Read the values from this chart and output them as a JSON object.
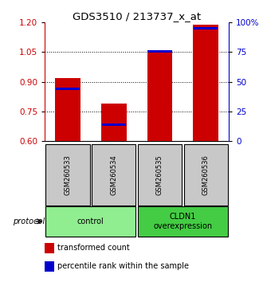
{
  "title": "GDS3510 / 213737_x_at",
  "samples": [
    "GSM260533",
    "GSM260534",
    "GSM260535",
    "GSM260536"
  ],
  "red_values": [
    0.92,
    0.79,
    1.06,
    1.19
  ],
  "blue_values": [
    0.865,
    0.682,
    1.055,
    1.17
  ],
  "ymin": 0.6,
  "ymax": 1.2,
  "yticks_left": [
    0.6,
    0.75,
    0.9,
    1.05,
    1.2
  ],
  "yticks_right_vals": [
    0,
    25,
    50,
    75,
    100
  ],
  "yticks_right_labels": [
    "0",
    "25",
    "50",
    "75",
    "100%"
  ],
  "gridlines": [
    0.75,
    0.9,
    1.05
  ],
  "groups": [
    {
      "label": "control",
      "indices": [
        0,
        1
      ],
      "color": "#90EE90"
    },
    {
      "label": "CLDN1\noverexpression",
      "indices": [
        2,
        3
      ],
      "color": "#44CC44"
    }
  ],
  "bar_width": 0.55,
  "red_color": "#CC0000",
  "blue_color": "#0000CC",
  "bar_base": 0.6,
  "legend_red": "transformed count",
  "legend_blue": "percentile rank within the sample",
  "protocol_label": "protocol",
  "sample_box_color": "#C8C8C8",
  "title_fontsize": 9.5,
  "tick_fontsize": 7.5,
  "sample_fontsize": 6,
  "group_fontsize": 7,
  "legend_fontsize": 7
}
